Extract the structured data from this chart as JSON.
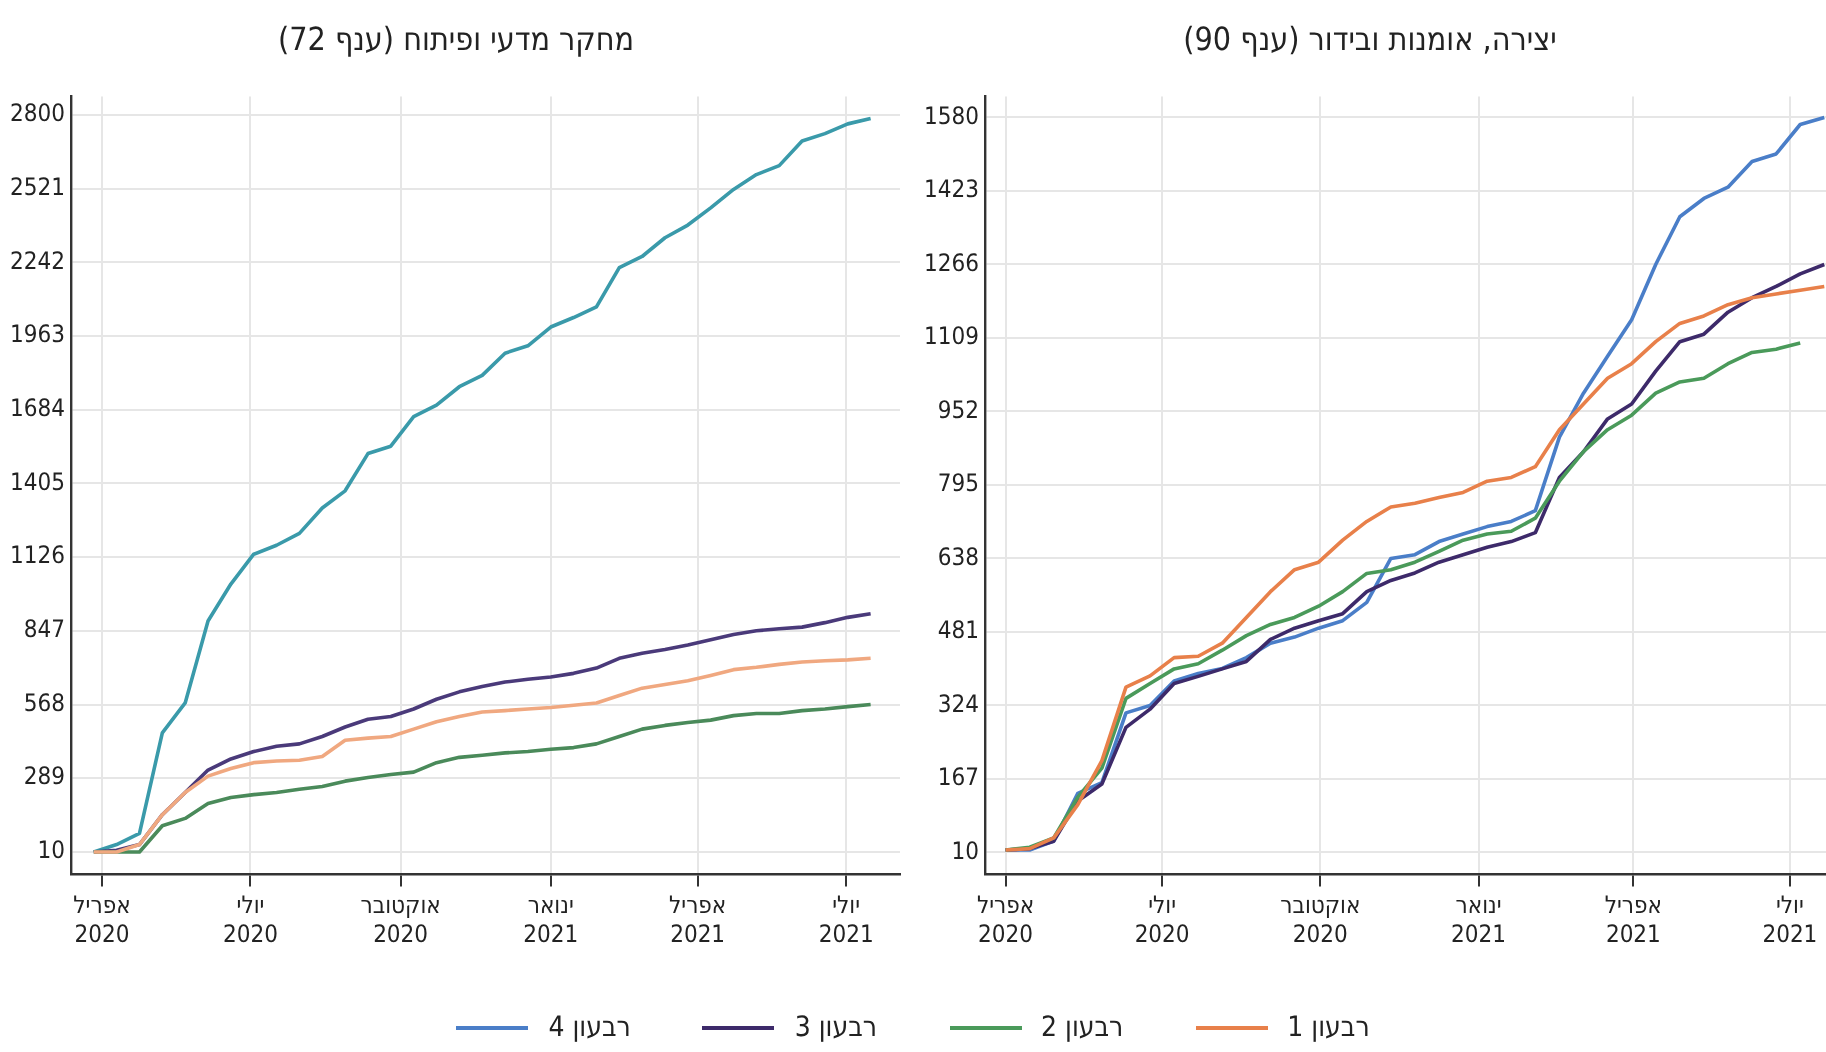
{
  "chart_data": [
    {
      "type": "line",
      "title": "מחקר מדעי ופיתוח (ענף 72)",
      "grid": true,
      "legend": false,
      "marker": "none",
      "line_style": "solid",
      "x": [
        "2020-03-27",
        "2020-04-10",
        "2020-04-24",
        "2020-05-08",
        "2020-05-22",
        "2020-06-05",
        "2020-06-19",
        "2020-07-03",
        "2020-07-17",
        "2020-07-31",
        "2020-08-14",
        "2020-08-28",
        "2020-09-11",
        "2020-09-25",
        "2020-10-09",
        "2020-10-23",
        "2020-11-06",
        "2020-11-20",
        "2020-12-04",
        "2020-12-18",
        "2021-01-01",
        "2021-01-15",
        "2021-01-29",
        "2021-02-12",
        "2021-02-26",
        "2021-03-12",
        "2021-03-26",
        "2021-04-09",
        "2021-04-23",
        "2021-05-07",
        "2021-05-21",
        "2021-06-04",
        "2021-06-18",
        "2021-07-02",
        "2021-07-16"
      ],
      "xlim": [
        "2020-03-13",
        "2021-08-03"
      ],
      "xticks": [
        {
          "value": "2020-04-01",
          "label": "אפריל 2020"
        },
        {
          "value": "2020-07-01",
          "label": "יולי 2020"
        },
        {
          "value": "2020-10-01",
          "label": "אוקטובר 2020"
        },
        {
          "value": "2021-01-01",
          "label": "ינואר 2021"
        },
        {
          "value": "2021-04-01",
          "label": "אפריל 2021"
        },
        {
          "value": "2021-07-01",
          "label": "יולי 2021"
        }
      ],
      "ylim": [
        -75,
        2870
      ],
      "yticks": [
        10,
        289,
        568,
        847,
        1126,
        1405,
        1684,
        1963,
        2242,
        2521,
        2800
      ],
      "series": [
        {
          "color": "#f0a880",
          "values": [
            10,
            10,
            38,
            151,
            235,
            297,
            326,
            348,
            354,
            357,
            371,
            433,
            441,
            447,
            475,
            503,
            523,
            540,
            545,
            551,
            557,
            565,
            574,
            602,
            630,
            644,
            658,
            678,
            700,
            709,
            720,
            729,
            734,
            737,
            743
          ]
        },
        {
          "color": "#4a8a5a",
          "values": [
            10,
            10,
            10,
            109,
            137,
            193,
            216,
            227,
            235,
            247,
            258,
            278,
            292,
            303,
            312,
            348,
            368,
            376,
            385,
            390,
            399,
            405,
            419,
            447,
            475,
            489,
            500,
            509,
            526,
            534,
            534,
            545,
            551,
            560,
            568
          ]
        },
        {
          "color": "#4a3a7a",
          "values": [
            10,
            16,
            38,
            151,
            235,
            320,
            362,
            390,
            410,
            419,
            447,
            483,
            512,
            523,
            551,
            588,
            616,
            636,
            653,
            664,
            672,
            686,
            706,
            743,
            762,
            776,
            793,
            813,
            833,
            847,
            855,
            861,
            878,
            898,
            912
          ]
        },
        {
          "color": "#3a9aaa",
          "values": [
            10,
            38,
            80,
            461,
            574,
            884,
            1024,
            1137,
            1171,
            1216,
            1312,
            1377,
            1518,
            1546,
            1658,
            1701,
            1771,
            1814,
            1898,
            1926,
            1997,
            2033,
            2073,
            2222,
            2264,
            2335,
            2383,
            2448,
            2518,
            2574,
            2608,
            2701,
            2729,
            2766,
            2786
          ]
        }
      ]
    },
    {
      "type": "line",
      "title": "יצירה, אומנות ובידור (ענף 90)",
      "grid": true,
      "legend": "bottom",
      "marker": "none",
      "line_style": "solid",
      "x": [
        "2020-04-01",
        "2020-04-15",
        "2020-04-29",
        "2020-05-13",
        "2020-05-27",
        "2020-06-10",
        "2020-06-24",
        "2020-07-08",
        "2020-07-22",
        "2020-08-05",
        "2020-08-19",
        "2020-09-02",
        "2020-09-16",
        "2020-09-30",
        "2020-10-14",
        "2020-10-28",
        "2020-11-11",
        "2020-11-25",
        "2020-12-09",
        "2020-12-23",
        "2021-01-06",
        "2021-01-20",
        "2021-02-03",
        "2021-02-17",
        "2021-03-03",
        "2021-03-17",
        "2021-03-31",
        "2021-04-14",
        "2021-04-28",
        "2021-05-12",
        "2021-05-26",
        "2021-06-09",
        "2021-06-23",
        "2021-07-07",
        "2021-07-21"
      ],
      "xlim": [
        "2020-03-20",
        "2021-07-22"
      ],
      "xticks": [
        {
          "value": "2020-04-01",
          "label": "אפריל 2020"
        },
        {
          "value": "2020-07-01",
          "label": "יולי 2020"
        },
        {
          "value": "2020-10-01",
          "label": "אוקטובר 2020"
        },
        {
          "value": "2021-01-01",
          "label": "ינואר 2021"
        },
        {
          "value": "2021-04-01",
          "label": "אפריל 2021"
        },
        {
          "value": "2021-07-01",
          "label": "יולי 2021"
        }
      ],
      "ylim": [
        -37,
        1625
      ],
      "yticks": [
        10,
        167,
        324,
        481,
        638,
        795,
        952,
        1109,
        1266,
        1423,
        1580
      ],
      "series": [
        {
          "name": "רבעון 1",
          "color": "#e8804a",
          "values": [
            15,
            18,
            41,
            112,
            206,
            363,
            387,
            426,
            429,
            457,
            512,
            567,
            614,
            630,
            677,
            717,
            748,
            756,
            768,
            779,
            803,
            811,
            834,
            913,
            968,
            1023,
            1054,
            1101,
            1140,
            1156,
            1180,
            1195,
            1203,
            1211,
            1219
          ]
        },
        {
          "name": "רבעון 2",
          "color": "#4a9a5a",
          "values": [
            15,
            21,
            41,
            128,
            190,
            339,
            371,
            402,
            413,
            442,
            473,
            497,
            512,
            536,
            567,
            606,
            614,
            630,
            653,
            677,
            690,
            696,
            724,
            803,
            866,
            913,
            944,
            991,
            1015,
            1023,
            1054,
            1078,
            1085,
            1098,
            null
          ]
        },
        {
          "name": "רבעון 3",
          "color": "#3d2a6a",
          "values": [
            15,
            18,
            34,
            120,
            156,
            277,
            316,
            371,
            386,
            402,
            418,
            465,
            489,
            505,
            520,
            567,
            591,
            607,
            630,
            646,
            662,
            674,
            693,
            811,
            866,
            936,
            968,
            1038,
            1101,
            1117,
            1164,
            1195,
            1219,
            1246,
            1266
          ]
        },
        {
          "name": "רבעון 4",
          "color": "#4a7ec8",
          "values": [
            15,
            15,
            34,
            136,
            159,
            308,
            324,
            376,
            392,
            403,
            426,
            457,
            470,
            489,
            505,
            544,
            638,
            646,
            674,
            690,
            706,
            717,
            740,
            897,
            991,
            1070,
            1148,
            1266,
            1368,
            1407,
            1431,
            1486,
            1502,
            1565,
            1580
          ]
        }
      ]
    }
  ]
}
